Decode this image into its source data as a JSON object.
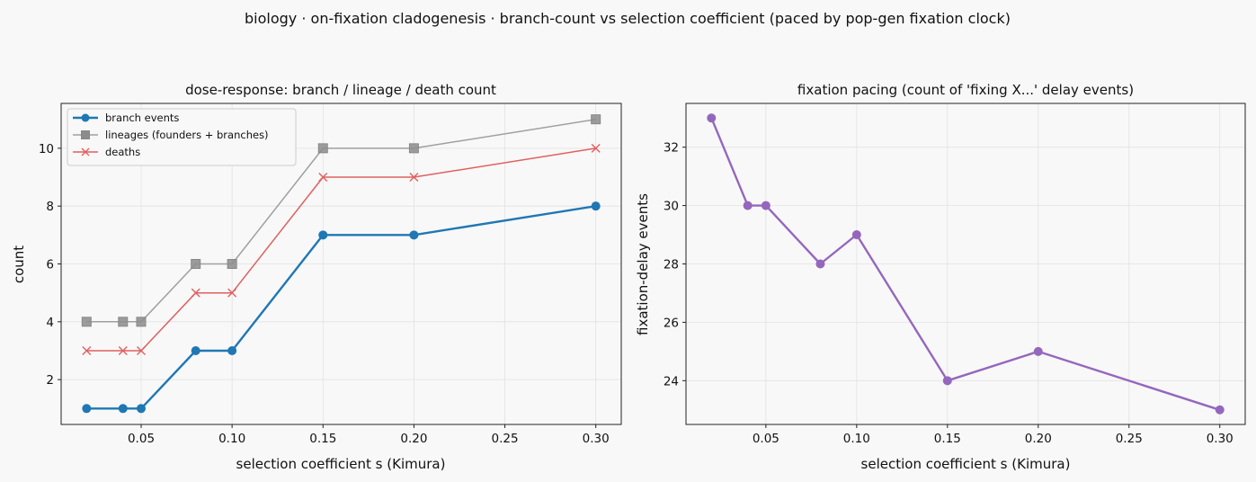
{
  "figure": {
    "suptitle": "biology · on-fixation cladogenesis · branch-count vs selection coefficient (paced by pop-gen fixation clock)"
  },
  "chart_data": [
    {
      "type": "line",
      "title": "dose-response: branch / lineage / death count",
      "xlabel": "selection coefficient s (Kimura)",
      "ylabel": "count",
      "x": [
        0.02,
        0.04,
        0.05,
        0.08,
        0.1,
        0.15,
        0.2,
        0.3
      ],
      "xlim": [
        0.006,
        0.314
      ],
      "ylim": [
        0.45,
        11.55
      ],
      "xticks": [
        0.05,
        0.1,
        0.15,
        0.2,
        0.25,
        0.3
      ],
      "xtick_labels": [
        "0.05",
        "0.10",
        "0.15",
        "0.20",
        "0.25",
        "0.30"
      ],
      "yticks": [
        2,
        4,
        6,
        8,
        10
      ],
      "ytick_labels": [
        "2",
        "4",
        "6",
        "8",
        "10"
      ],
      "grid": true,
      "legend": "upper-left",
      "series": [
        {
          "name": "branch events",
          "values": [
            1,
            1,
            1,
            3,
            3,
            7,
            7,
            8
          ],
          "color": "#1f77b4",
          "marker": "circle",
          "line_width": 2.4
        },
        {
          "name": "lineages (founders + branches)",
          "values": [
            4,
            4,
            4,
            6,
            6,
            10,
            10,
            11
          ],
          "color": "#a0a0a0",
          "marker": "square",
          "line_width": 1.5
        },
        {
          "name": "deaths",
          "values": [
            3,
            3,
            3,
            5,
            5,
            9,
            9,
            10
          ],
          "color": "#e06060",
          "marker": "x",
          "line_width": 1.5
        }
      ]
    },
    {
      "type": "line",
      "title": "fixation pacing (count of 'fixing X...' delay events)",
      "xlabel": "selection coefficient s (Kimura)",
      "ylabel": "fixation-delay events",
      "x": [
        0.02,
        0.04,
        0.05,
        0.08,
        0.1,
        0.15,
        0.2,
        0.3
      ],
      "xlim": [
        0.006,
        0.314
      ],
      "ylim": [
        22.5,
        33.5
      ],
      "xticks": [
        0.05,
        0.1,
        0.15,
        0.2,
        0.25,
        0.3
      ],
      "xtick_labels": [
        "0.05",
        "0.10",
        "0.15",
        "0.20",
        "0.25",
        "0.30"
      ],
      "yticks": [
        24,
        26,
        28,
        30,
        32
      ],
      "ytick_labels": [
        "24",
        "26",
        "28",
        "30",
        "32"
      ],
      "grid": true,
      "legend": "none",
      "series": [
        {
          "values": [
            33,
            30,
            30,
            28,
            29,
            24,
            25,
            23
          ],
          "color": "#9467bd",
          "marker": "circle",
          "line_width": 2.4
        }
      ]
    }
  ]
}
